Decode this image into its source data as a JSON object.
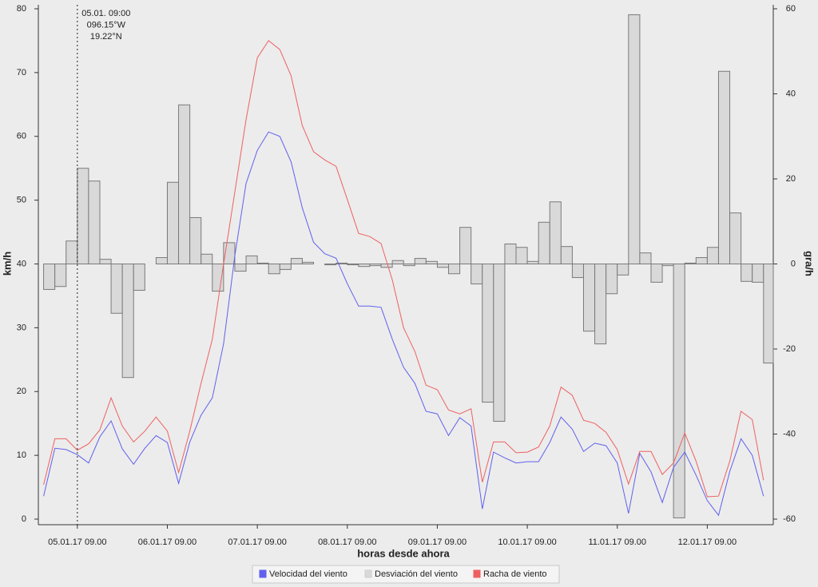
{
  "chart_data": {
    "type": "line",
    "xlabel": "horas desde ahora",
    "ylabel": "km/h",
    "y2label": "gra/h",
    "x": [
      -9,
      -6,
      -3,
      0,
      3,
      6,
      9,
      12,
      15,
      18,
      21,
      24,
      27,
      30,
      33,
      36,
      39,
      42,
      45,
      48,
      51,
      54,
      57,
      60,
      63,
      66,
      69,
      72,
      75,
      78,
      81,
      84,
      87,
      90,
      93,
      96,
      99,
      102,
      105,
      108,
      111,
      114,
      117,
      120,
      123,
      126,
      129,
      132,
      135,
      138,
      141,
      144,
      147,
      150,
      153,
      156,
      159,
      162,
      165,
      168,
      171,
      174,
      177,
      180,
      183
    ],
    "xlim": [
      -10.4,
      185.6
    ],
    "xticks": [
      {
        "value": 0,
        "label": "05.01.17 09.00"
      },
      {
        "value": 24,
        "label": "06.01.17 09.00"
      },
      {
        "value": 48,
        "label": "07.01.17 09.00"
      },
      {
        "value": 72,
        "label": "08.01.17 09.00"
      },
      {
        "value": 96,
        "label": "09.01.17 09.00"
      },
      {
        "value": 120,
        "label": "10.01.17 09.00"
      },
      {
        "value": 144,
        "label": "11.01.17 09.00"
      },
      {
        "value": 168,
        "label": "12.01.17 09.00"
      }
    ],
    "ylim": [
      0,
      80
    ],
    "yticks": [
      0,
      10,
      20,
      30,
      40,
      50,
      60,
      70,
      80
    ],
    "y2lim": [
      -60,
      60
    ],
    "y2ticks": [
      -60,
      -40,
      -20,
      0,
      20,
      40,
      60
    ],
    "annotation": {
      "x": 0,
      "lines": [
        "05.01. 09:00",
        "096.15°W",
        "19.22°N"
      ]
    },
    "series": [
      {
        "name": "Velocidad del viento",
        "type": "line",
        "color": "#6060ee",
        "values": [
          3.6,
          11.1,
          10.9,
          10.1,
          8.8,
          12.9,
          15.4,
          11,
          8.6,
          11.1,
          13.1,
          12,
          5.6,
          12.1,
          16.3,
          19,
          27.5,
          41.3,
          52.6,
          57.8,
          60.7,
          60,
          56,
          48.8,
          43.4,
          41.6,
          40.9,
          36.9,
          33.4,
          33.4,
          33.2,
          28.2,
          23.8,
          21.3,
          16.9,
          16.5,
          13.1,
          15.9,
          14.6,
          1.6,
          10.5,
          9.6,
          8.8,
          9,
          9,
          12,
          16,
          14.1,
          10.6,
          11.9,
          11.5,
          8.8,
          0.9,
          10.3,
          7.4,
          2.6,
          8.1,
          10.5,
          6.9,
          2.9,
          0.6,
          7.5,
          12.6,
          10,
          3.6
        ]
      },
      {
        "name": "Desviación del viento",
        "type": "bar",
        "axis": "y2",
        "color": "#d9d9d9",
        "values": [
          -6,
          -5.3,
          5.4,
          22.5,
          19.5,
          1.1,
          -11.6,
          -26.7,
          -6.2,
          0,
          1.5,
          19.2,
          37.4,
          10.9,
          2.3,
          -6.4,
          5,
          -1.7,
          1.9,
          0.2,
          -2.3,
          -1.3,
          1.3,
          0.4,
          0,
          -0.2,
          0.2,
          -0.2,
          -0.6,
          -0.4,
          -0.8,
          0.8,
          -0.4,
          1.3,
          0.6,
          -0.8,
          -2.3,
          8.6,
          -4.7,
          -32.5,
          -37,
          4.7,
          3.9,
          0.6,
          9.8,
          14.6,
          4.1,
          -3.2,
          -15.8,
          -18.8,
          -7,
          -2.6,
          58.6,
          2.6,
          -4.3,
          -0.4,
          -59.7,
          0.2,
          1.5,
          3.9,
          45.3,
          12,
          -4.1,
          -4.3,
          -23.3
        ]
      },
      {
        "name": "Racha de viento",
        "type": "line",
        "color": "#ee6060",
        "values": [
          5.4,
          12.6,
          12.6,
          10.8,
          11.8,
          14,
          19,
          14.6,
          12.1,
          13.8,
          16,
          13.8,
          7.3,
          13.8,
          21.3,
          28.2,
          40,
          51.3,
          62.6,
          72.3,
          75,
          73.6,
          69.5,
          61.7,
          57.6,
          56.3,
          55.3,
          50.1,
          44.8,
          44.3,
          43.2,
          37.5,
          30,
          26.3,
          21,
          20.3,
          17.1,
          16.5,
          17.3,
          5.8,
          12.1,
          12.1,
          10.4,
          10.5,
          11.3,
          14.6,
          20.7,
          19.4,
          15.5,
          15,
          13.6,
          10.9,
          5.5,
          10.6,
          10.6,
          7,
          8.8,
          13.5,
          9.1,
          3.5,
          3.6,
          9.1,
          16.9,
          15.6,
          6.1
        ]
      }
    ]
  }
}
